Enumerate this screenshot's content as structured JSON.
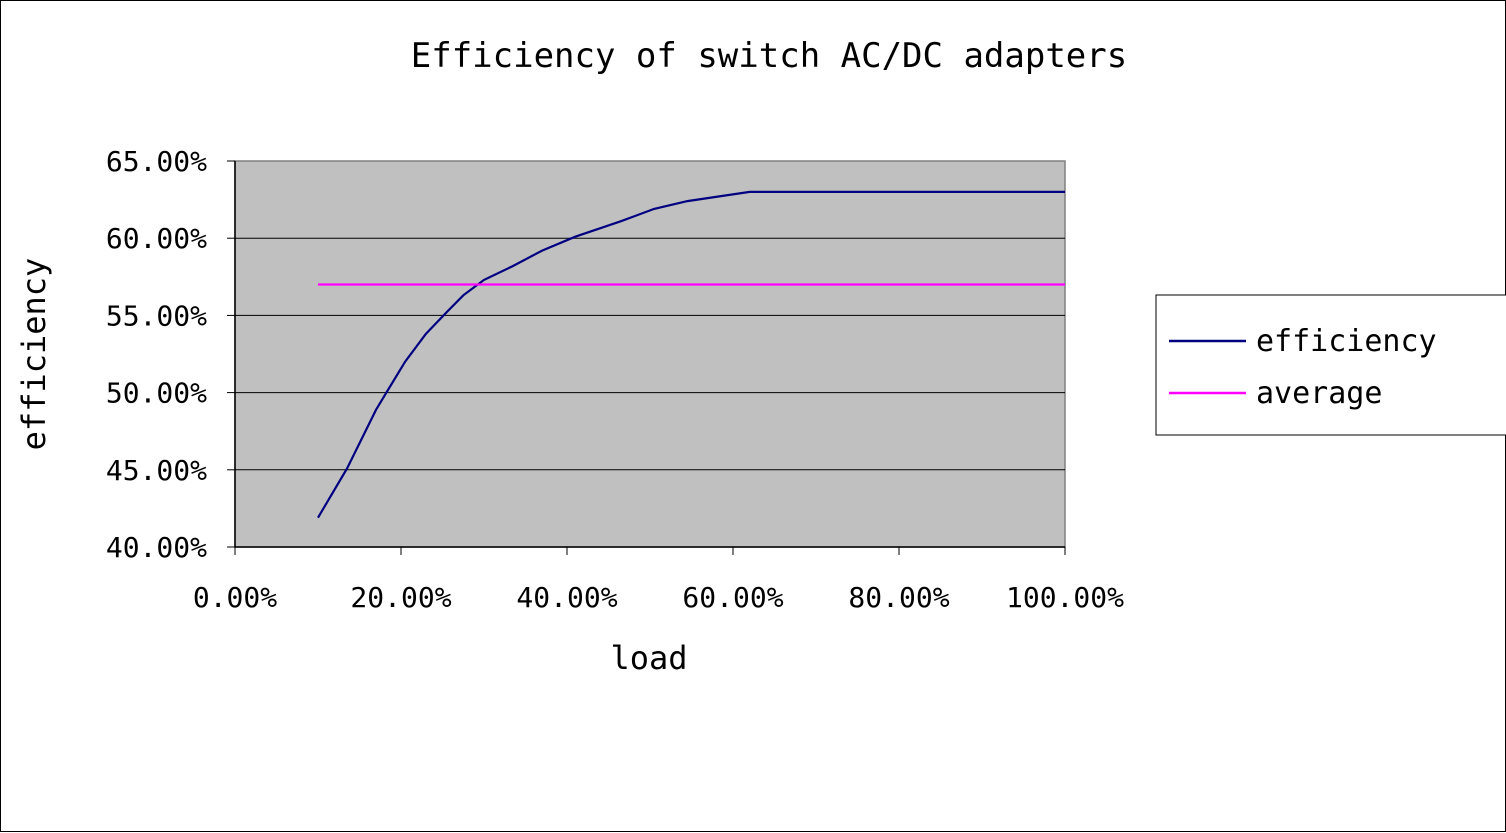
{
  "chart_data": {
    "type": "line",
    "title": "Efficiency of switch AC/DC adapters",
    "xlabel": "load",
    "ylabel": "efficiency",
    "xlim": [
      0,
      100
    ],
    "ylim": [
      40,
      65
    ],
    "x_ticks": [
      "0.00%",
      "20.00%",
      "40.00%",
      "60.00%",
      "80.00%",
      "100.00%"
    ],
    "y_ticks": [
      "40.00%",
      "45.00%",
      "50.00%",
      "55.00%",
      "60.00%",
      "65.00%"
    ],
    "grid": true,
    "legend_position": "right",
    "plot_background": "#C0C0C0",
    "series": [
      {
        "name": "efficiency",
        "color": "#000080",
        "x": [
          10,
          13.5,
          17,
          20.5,
          23,
          25.5,
          27.5,
          30,
          33.5,
          37,
          41,
          46.5,
          50.5,
          54.5,
          62,
          100
        ],
        "y": [
          41.9,
          45.1,
          48.9,
          52.0,
          53.8,
          55.2,
          56.3,
          57.3,
          58.2,
          59.2,
          60.1,
          61.1,
          61.9,
          62.4,
          63.0,
          63.0
        ]
      },
      {
        "name": "average",
        "color": "#FF00FF",
        "x": [
          10,
          100
        ],
        "y": [
          57.0,
          57.0
        ]
      }
    ]
  }
}
